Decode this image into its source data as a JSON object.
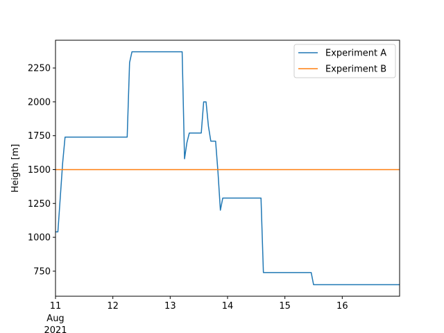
{
  "chart_data": {
    "type": "line",
    "ylabel": "Heigth [m]",
    "xlabel": "",
    "x_axis": {
      "type": "date",
      "range": [
        "2021-08-11T00:00",
        "2021-08-17T00:00"
      ],
      "ticks": [
        {
          "x": "2021-08-11T00:00",
          "label": "11",
          "sublabels": [
            "Aug",
            "2021"
          ]
        },
        {
          "x": "2021-08-12T00:00",
          "label": "12"
        },
        {
          "x": "2021-08-13T00:00",
          "label": "13"
        },
        {
          "x": "2021-08-14T00:00",
          "label": "14"
        },
        {
          "x": "2021-08-15T00:00",
          "label": "15"
        },
        {
          "x": "2021-08-16T00:00",
          "label": "16"
        }
      ]
    },
    "ylim": [
      565,
      2455
    ],
    "yticks": [
      {
        "value": 750,
        "label": "750"
      },
      {
        "value": 1000,
        "label": "1000"
      },
      {
        "value": 1250,
        "label": "1250"
      },
      {
        "value": 1500,
        "label": "1500"
      },
      {
        "value": 1750,
        "label": "1750"
      },
      {
        "value": 2000,
        "label": "2000"
      },
      {
        "value": 2250,
        "label": "2250"
      }
    ],
    "grid": false,
    "legend": {
      "position": "top-right"
    },
    "series": [
      {
        "name": "Experiment A",
        "color": "#1f77b4",
        "points": [
          [
            "2021-08-11T00:00",
            1040
          ],
          [
            "2021-08-11T01:00",
            1040
          ],
          [
            "2021-08-11T03:00",
            1550
          ],
          [
            "2021-08-11T04:00",
            1740
          ],
          [
            "2021-08-12T06:00",
            1740
          ],
          [
            "2021-08-12T07:00",
            2290
          ],
          [
            "2021-08-12T08:00",
            2370
          ],
          [
            "2021-08-13T05:00",
            2370
          ],
          [
            "2021-08-13T06:00",
            1580
          ],
          [
            "2021-08-13T07:00",
            1700
          ],
          [
            "2021-08-13T08:00",
            1770
          ],
          [
            "2021-08-13T13:00",
            1770
          ],
          [
            "2021-08-13T14:00",
            2000
          ],
          [
            "2021-08-13T15:00",
            2000
          ],
          [
            "2021-08-13T16:00",
            1820
          ],
          [
            "2021-08-13T17:00",
            1710
          ],
          [
            "2021-08-13T19:00",
            1710
          ],
          [
            "2021-08-13T20:00",
            1480
          ],
          [
            "2021-08-13T21:00",
            1200
          ],
          [
            "2021-08-13T22:00",
            1290
          ],
          [
            "2021-08-14T14:00",
            1290
          ],
          [
            "2021-08-14T15:00",
            740
          ],
          [
            "2021-08-15T11:00",
            740
          ],
          [
            "2021-08-15T12:00",
            650
          ],
          [
            "2021-08-17T00:00",
            650
          ]
        ]
      },
      {
        "name": "Experiment B",
        "color": "#ff7f0e",
        "points": [
          [
            "2021-08-11T00:00",
            1500
          ],
          [
            "2021-08-17T00:00",
            1500
          ]
        ]
      }
    ]
  }
}
